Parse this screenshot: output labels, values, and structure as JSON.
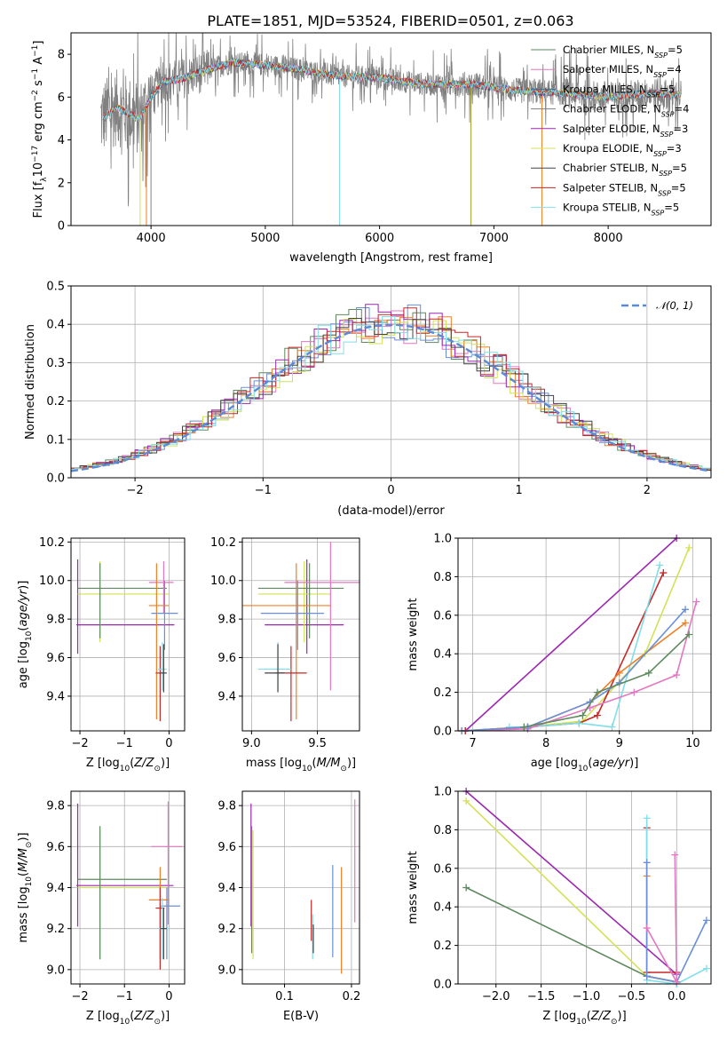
{
  "colors": {
    "Chabrier MILES": "#5e8a5e",
    "Salpeter MILES": "#e377c2",
    "Kroupa MILES": "#1f77b4",
    "Chabrier ELODIE": "#7f7f7f",
    "Salpeter ELODIE": "#9c27b0",
    "Kroupa ELODIE": "#d4e157",
    "Chabrier STELIB": "#444444",
    "Salpeter STELIB": "#c62828",
    "Kroupa STELIB": "#80deea",
    "orange": "#ef7f26",
    "blue": "#6a8fd8"
  },
  "chart_data": [
    {
      "id": "spectrum",
      "type": "line",
      "title": "PLATE=1851, MJD=53524, FIBERID=0501, z=0.063",
      "xlabel": "wavelength [Angstrom, rest frame]",
      "ylabel": "Flux [f_λ10^-17 erg cm^-2 s^-1 A^-1]",
      "xlim": [
        3300,
        8900
      ],
      "ylim": [
        0,
        9
      ],
      "xticks": [
        "4000",
        "5000",
        "6000",
        "7000",
        "8000"
      ],
      "yticks": [
        "0",
        "2",
        "4",
        "6",
        "8"
      ],
      "grid": false,
      "legend_position": "top-right",
      "continuum": [
        [
          3560,
          5.0
        ],
        [
          3700,
          5.5
        ],
        [
          3900,
          5.0
        ],
        [
          4000,
          6.0
        ],
        [
          4100,
          6.7
        ],
        [
          4300,
          6.9
        ],
        [
          4500,
          7.3
        ],
        [
          4700,
          7.6
        ],
        [
          5000,
          7.5
        ],
        [
          5300,
          7.3
        ],
        [
          5600,
          7.0
        ],
        [
          6000,
          6.9
        ],
        [
          6400,
          6.6
        ],
        [
          6800,
          6.6
        ],
        [
          7200,
          6.3
        ],
        [
          7600,
          6.2
        ],
        [
          8000,
          6.0
        ],
        [
          8400,
          6.2
        ],
        [
          8600,
          6.1
        ]
      ],
      "series": [
        {
          "name": "Chabrier MILES, N_SSP=5"
        },
        {
          "name": "Salpeter MILES, N_SSP=4"
        },
        {
          "name": "Kroupa MILES, N_SSP=5"
        },
        {
          "name": "Chabrier ELODIE, N_SSP=4"
        },
        {
          "name": "Salpeter ELODIE, N_SSP=3"
        },
        {
          "name": "Kroupa ELODIE, N_SSP=3"
        },
        {
          "name": "Chabrier STELIB, N_SSP=5"
        },
        {
          "name": "Salpeter STELIB, N_SSP=5"
        },
        {
          "name": "Kroupa STELIB, N_SSP=5"
        }
      ]
    },
    {
      "id": "residuals",
      "type": "line",
      "xlabel": "(data-model)/error",
      "ylabel": "Normed distribution",
      "xlim": [
        -2.5,
        2.5
      ],
      "ylim": [
        0,
        0.5
      ],
      "xticks": [
        "−2",
        "−1",
        "0",
        "1",
        "2"
      ],
      "yticks": [
        "0.0",
        "0.1",
        "0.2",
        "0.3",
        "0.4",
        "0.5"
      ],
      "grid": true,
      "legend": "𝒩(0, 1)",
      "legend_position": "top-right"
    },
    {
      "id": "age-vs-Z",
      "type": "scatter",
      "xlabel": "Z [log10(Z/Z⊙)]",
      "ylabel": "age  [log10(age/yr)]",
      "xlim": [
        -2.2,
        0.35
      ],
      "ylim": [
        9.22,
        10.22
      ],
      "xticks": [
        "−2",
        "−1",
        "0"
      ],
      "yticks": [
        "9.4",
        "9.6",
        "9.8",
        "10.0",
        "10.2"
      ],
      "grid": true,
      "errorbars": [
        {
          "c": "Salpeter ELODIE",
          "x": -2.05,
          "y": 9.77,
          "xl": -2.08,
          "xr": 0.12,
          "yl": 9.62,
          "yh": 10.11
        },
        {
          "c": "Kroupa ELODIE",
          "x": -1.55,
          "y": 9.93,
          "xl": -2.05,
          "xr": 0.0,
          "yl": 9.68,
          "yh": 10.1
        },
        {
          "c": "Chabrier MILES",
          "x": -1.55,
          "y": 9.96,
          "xl": -2.05,
          "xr": -0.05,
          "yl": 9.7,
          "yh": 10.09
        },
        {
          "c": "Salpeter MILES",
          "x": -0.12,
          "y": 9.99,
          "xl": -0.45,
          "xr": 0.1,
          "yl": 9.83,
          "yh": 10.1
        },
        {
          "c": "orange",
          "x": -0.28,
          "y": 9.87,
          "xl": -0.45,
          "xr": 0.0,
          "yl": 9.28,
          "yh": 10.09
        },
        {
          "c": "blue",
          "x": -0.1,
          "y": 9.83,
          "xl": -0.4,
          "xr": 0.2,
          "yl": 9.64,
          "yh": 10.0
        },
        {
          "c": "Salpeter STELIB",
          "x": -0.2,
          "y": 9.52,
          "xl": -0.3,
          "xr": -0.1,
          "yl": 9.27,
          "yh": 9.66
        },
        {
          "c": "Kroupa STELIB",
          "x": -0.15,
          "y": 9.54,
          "xl": -0.25,
          "xr": -0.05,
          "yl": 9.43,
          "yh": 9.68
        },
        {
          "c": "Chabrier STELIB",
          "x": -0.12,
          "y": 9.52,
          "xl": -0.2,
          "xr": -0.05,
          "yl": 9.42,
          "yh": 9.67
        }
      ]
    },
    {
      "id": "age-vs-mass",
      "type": "scatter",
      "xlabel": "mass [log10(M/M⊙)]",
      "xlim": [
        8.93,
        9.82
      ],
      "ylim": [
        9.22,
        10.22
      ],
      "xticks": [
        "9.0",
        "9.5"
      ],
      "yticks": [
        "9.4",
        "9.6",
        "9.8",
        "10.0",
        "10.2"
      ],
      "grid": true,
      "errorbars": [
        {
          "c": "Salpeter ELODIE",
          "x": 9.42,
          "y": 9.77,
          "xl": 9.1,
          "xr": 9.7,
          "yl": 9.62,
          "yh": 10.11
        },
        {
          "c": "Kroupa ELODIE",
          "x": 9.4,
          "y": 9.93,
          "xl": 9.05,
          "xr": 9.6,
          "yl": 9.68,
          "yh": 10.1
        },
        {
          "c": "Chabrier MILES",
          "x": 9.44,
          "y": 9.96,
          "xl": 9.05,
          "xr": 9.7,
          "yl": 9.7,
          "yh": 10.09
        },
        {
          "c": "Salpeter MILES",
          "x": 9.6,
          "y": 9.99,
          "xl": 9.25,
          "xr": 9.82,
          "yl": 9.43,
          "yh": 10.2
        },
        {
          "c": "orange",
          "x": 9.34,
          "y": 9.87,
          "xl": 8.93,
          "xr": 9.6,
          "yl": 9.28,
          "yh": 10.09
        },
        {
          "c": "blue",
          "x": 9.35,
          "y": 9.83,
          "xl": 9.07,
          "xr": 9.55,
          "yl": 9.64,
          "yh": 10.0
        },
        {
          "c": "Salpeter STELIB",
          "x": 9.3,
          "y": 9.52,
          "xl": 9.18,
          "xr": 9.42,
          "yl": 9.27,
          "yh": 9.66
        },
        {
          "c": "Kroupa STELIB",
          "x": 9.2,
          "y": 9.54,
          "xl": 9.05,
          "xr": 9.3,
          "yl": 9.43,
          "yh": 9.68
        },
        {
          "c": "Chabrier STELIB",
          "x": 9.2,
          "y": 9.52,
          "xl": 9.1,
          "xr": 9.25,
          "yl": 9.42,
          "yh": 9.67
        }
      ]
    },
    {
      "id": "weight-vs-age",
      "type": "line",
      "xlabel": "age  [log10(age/yr)]",
      "ylabel": "mass weight",
      "xlim": [
        6.8,
        10.25
      ],
      "ylim": [
        0,
        1
      ],
      "xticks": [
        "7",
        "8",
        "9",
        "10"
      ],
      "yticks": [
        "0.0",
        "0.2",
        "0.4",
        "0.6",
        "0.8",
        "1.0"
      ],
      "grid": true,
      "series": [
        {
          "c": "Salpeter ELODIE",
          "x": [
            6.9,
            9.78
          ],
          "y": [
            0.0,
            1.0
          ]
        },
        {
          "c": "Kroupa ELODIE",
          "x": [
            6.85,
            7.7,
            8.5,
            9.35,
            9.95
          ],
          "y": [
            0.0,
            0.02,
            0.05,
            0.4,
            0.95
          ]
        },
        {
          "c": "Salpeter STELIB",
          "x": [
            6.9,
            7.75,
            8.45,
            8.7,
            9.6
          ],
          "y": [
            0.0,
            0.02,
            0.04,
            0.08,
            0.82
          ]
        },
        {
          "c": "Kroupa STELIB",
          "x": [
            7.5,
            7.75,
            8.45,
            8.9,
            9.55
          ],
          "y": [
            0.02,
            0.02,
            0.04,
            0.02,
            0.86
          ]
        },
        {
          "c": "Salpeter MILES",
          "x": [
            6.85,
            7.75,
            8.6,
            9.2,
            9.78,
            10.05
          ],
          "y": [
            0.0,
            0.01,
            0.12,
            0.2,
            0.29,
            0.67
          ]
        },
        {
          "c": "orange",
          "x": [
            6.85,
            7.75,
            8.6,
            9.0,
            9.9
          ],
          "y": [
            0.0,
            0.02,
            0.15,
            0.3,
            0.56
          ]
        },
        {
          "c": "blue",
          "x": [
            6.85,
            7.75,
            8.6,
            9.0,
            9.9
          ],
          "y": [
            0.0,
            0.02,
            0.15,
            0.25,
            0.63
          ]
        },
        {
          "c": "Chabrier MILES",
          "x": [
            7.7,
            8.5,
            8.7,
            9.4,
            9.95
          ],
          "y": [
            0.02,
            0.08,
            0.2,
            0.3,
            0.5
          ]
        }
      ]
    },
    {
      "id": "mass-vs-Z",
      "type": "scatter",
      "xlabel": "Z [log10(Z/Z⊙)]",
      "ylabel": "mass [log10(M/M⊙)]",
      "xlim": [
        -2.2,
        0.35
      ],
      "ylim": [
        8.93,
        9.87
      ],
      "xticks": [
        "−2",
        "−1",
        "0"
      ],
      "yticks": [
        "9.0",
        "9.2",
        "9.4",
        "9.6",
        "9.8"
      ],
      "grid": true,
      "errorbars": [
        {
          "c": "Salpeter ELODIE",
          "x": -2.05,
          "y": 9.41,
          "xl": -2.08,
          "xr": 0.1,
          "yl": 9.21,
          "yh": 9.81
        },
        {
          "c": "Kroupa ELODIE",
          "x": -1.55,
          "y": 9.4,
          "xl": -2.05,
          "xr": -0.05,
          "yl": 9.05,
          "yh": 9.68
        },
        {
          "c": "Chabrier MILES",
          "x": -1.55,
          "y": 9.44,
          "xl": -2.05,
          "xr": -0.05,
          "yl": 9.05,
          "yh": 9.7
        },
        {
          "c": "Salpeter MILES",
          "x": -0.02,
          "y": 9.6,
          "xl": -0.4,
          "xr": 0.3,
          "yl": 9.22,
          "yh": 9.82
        },
        {
          "c": "orange",
          "x": -0.2,
          "y": 9.34,
          "xl": -0.45,
          "xr": 0.0,
          "yl": 9.05,
          "yh": 9.5
        },
        {
          "c": "blue",
          "x": -0.05,
          "y": 9.31,
          "xl": -0.2,
          "xr": 0.25,
          "yl": 9.05,
          "yh": 9.4
        },
        {
          "c": "Salpeter STELIB",
          "x": -0.2,
          "y": 9.3,
          "xl": -0.3,
          "xr": -0.1,
          "yl": 9.0,
          "yh": 9.4
        },
        {
          "c": "Kroupa STELIB",
          "x": -0.15,
          "y": 9.2,
          "xl": -0.25,
          "xr": 0.0,
          "yl": 9.05,
          "yh": 9.35
        },
        {
          "c": "Chabrier STELIB",
          "x": -0.12,
          "y": 9.2,
          "xl": -0.2,
          "xr": -0.05,
          "yl": 9.05,
          "yh": 9.3
        }
      ]
    },
    {
      "id": "mass-vs-EBV",
      "type": "scatter",
      "xlabel": "E(B-V)",
      "xlim": [
        0.037,
        0.212
      ],
      "ylim": [
        8.93,
        9.87
      ],
      "xticks": [
        "0.1",
        "0.2"
      ],
      "yticks": [
        "9.0",
        "9.2",
        "9.4",
        "9.6",
        "9.8"
      ],
      "grid": true,
      "vlines": [
        {
          "c": "Salpeter ELODIE",
          "x": 0.05,
          "y0": 9.21,
          "y1": 9.81
        },
        {
          "c": "Chabrier MILES",
          "x": 0.051,
          "y0": 9.08,
          "y1": 9.7
        },
        {
          "c": "Kroupa ELODIE",
          "x": 0.053,
          "y0": 9.05,
          "y1": 9.68
        },
        {
          "c": "Salpeter STELIB",
          "x": 0.14,
          "y0": 9.14,
          "y1": 9.34
        },
        {
          "c": "Kroupa STELIB",
          "x": 0.142,
          "y0": 9.05,
          "y1": 9.27
        },
        {
          "c": "Chabrier STELIB",
          "x": 0.143,
          "y0": 9.08,
          "y1": 9.22
        },
        {
          "c": "blue",
          "x": 0.172,
          "y0": 9.06,
          "y1": 9.51
        },
        {
          "c": "orange",
          "x": 0.185,
          "y0": 8.98,
          "y1": 9.5
        },
        {
          "c": "Salpeter MILES",
          "x": 0.205,
          "y0": 9.23,
          "y1": 9.83
        }
      ]
    },
    {
      "id": "weight-vs-Z",
      "type": "line",
      "xlabel": "Z [log10(Z/Z⊙)]",
      "ylabel": "mass weight",
      "xlim": [
        -2.42,
        0.38
      ],
      "ylim": [
        0,
        1
      ],
      "xticks": [
        "−2.0",
        "−1.5",
        "−1.0",
        "−0.5",
        "0.0"
      ],
      "yticks": [
        "0.0",
        "0.2",
        "0.4",
        "0.6",
        "0.8",
        "1.0"
      ],
      "grid": true,
      "series": [
        {
          "c": "Salpeter ELODIE",
          "x": [
            -2.33,
            0.0
          ],
          "y": [
            1.0,
            0.05
          ]
        },
        {
          "c": "Kroupa ELODIE",
          "x": [
            -2.33,
            -0.33,
            0.0
          ],
          "y": [
            0.95,
            0.04,
            0.01
          ]
        },
        {
          "c": "Chabrier MILES",
          "x": [
            -2.33,
            -0.33,
            0.0
          ],
          "y": [
            0.5,
            0.04,
            0.01
          ]
        },
        {
          "c": "Salpeter STELIB",
          "x": [
            -0.33,
            -0.33,
            0.0
          ],
          "y": [
            0.81,
            0.06,
            0.06
          ]
        },
        {
          "c": "Kroupa STELIB",
          "x": [
            -0.33,
            -0.33,
            0.0,
            0.33
          ],
          "y": [
            0.86,
            0.02,
            0.0,
            0.08
          ]
        },
        {
          "c": "orange",
          "x": [
            -0.33,
            -0.33,
            0.0
          ],
          "y": [
            0.56,
            0.04,
            0.01
          ]
        },
        {
          "c": "blue",
          "x": [
            -0.33,
            -0.33,
            0.0,
            0.33
          ],
          "y": [
            0.63,
            0.04,
            0.01,
            0.33
          ]
        },
        {
          "c": "Salpeter MILES",
          "x": [
            -0.33,
            0.0,
            -0.02
          ],
          "y": [
            0.29,
            0.01,
            0.67
          ]
        }
      ]
    }
  ]
}
